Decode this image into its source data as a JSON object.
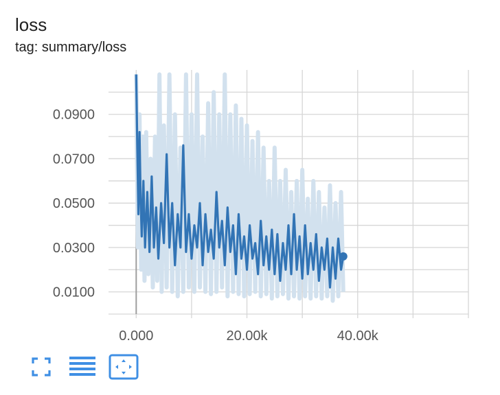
{
  "header": {
    "title": "loss",
    "subtitle": "tag: summary/loss"
  },
  "toolbar": {
    "buttons": [
      {
        "name": "expand-icon"
      },
      {
        "name": "log-scale-icon"
      },
      {
        "name": "fit-domain-icon"
      }
    ]
  },
  "colors": {
    "line": "#3274b5",
    "raw_line": "#d2e1ee",
    "grid": "#d6d6d6",
    "axis_text": "#555555",
    "zero_line": "#9e9e9e",
    "toolbar_icon": "#3f8fe4"
  },
  "chart_data": {
    "type": "line",
    "title": "loss",
    "subtitle": "tag: summary/loss",
    "xlabel": "",
    "ylabel": "",
    "xlim": [
      -5000,
      60000
    ],
    "ylim": [
      0.0,
      0.11
    ],
    "x_ticks": [
      0,
      20000,
      40000
    ],
    "x_tick_labels": [
      "0.000",
      "20.00k",
      "40.00k"
    ],
    "y_ticks": [
      0.01,
      0.03,
      0.05,
      0.07,
      0.09
    ],
    "y_tick_labels": [
      "0.0100",
      "0.0300",
      "0.0500",
      "0.0700",
      "0.0900"
    ],
    "grid": true,
    "legend": "none",
    "series": [
      {
        "role": "smoothed",
        "x": [
          0,
          200,
          400,
          600,
          800,
          1000,
          1300,
          1600,
          2000,
          2400,
          2800,
          3200,
          3600,
          4000,
          4500,
          5000,
          5500,
          6000,
          6500,
          7000,
          7500,
          8000,
          8500,
          9000,
          9500,
          10000,
          10500,
          11000,
          11500,
          12000,
          12500,
          13000,
          13500,
          14000,
          14500,
          15000,
          15500,
          16000,
          16500,
          17000,
          17500,
          18000,
          18500,
          19000,
          19500,
          20000,
          20500,
          21000,
          21500,
          22000,
          22500,
          23000,
          23500,
          24000,
          24500,
          25000,
          25500,
          26000,
          26500,
          27000,
          27500,
          28000,
          28500,
          29000,
          29500,
          30000,
          30500,
          31000,
          31500,
          32000,
          32500,
          33000,
          33500,
          34000,
          34500,
          35000,
          35500,
          36000,
          36500,
          37000,
          37400
        ],
        "values": [
          0.108,
          0.075,
          0.045,
          0.082,
          0.052,
          0.035,
          0.06,
          0.03,
          0.055,
          0.028,
          0.062,
          0.03,
          0.048,
          0.025,
          0.05,
          0.032,
          0.072,
          0.03,
          0.05,
          0.022,
          0.045,
          0.03,
          0.076,
          0.028,
          0.045,
          0.025,
          0.04,
          0.03,
          0.05,
          0.022,
          0.045,
          0.028,
          0.038,
          0.025,
          0.055,
          0.03,
          0.042,
          0.022,
          0.048,
          0.028,
          0.04,
          0.018,
          0.045,
          0.025,
          0.035,
          0.02,
          0.04,
          0.025,
          0.032,
          0.018,
          0.042,
          0.022,
          0.035,
          0.02,
          0.038,
          0.018,
          0.036,
          0.015,
          0.032,
          0.02,
          0.04,
          0.018,
          0.045,
          0.02,
          0.035,
          0.016,
          0.04,
          0.018,
          0.032,
          0.02,
          0.036,
          0.015,
          0.03,
          0.02,
          0.034,
          0.012,
          0.03,
          0.016,
          0.034,
          0.02,
          0.026
        ]
      },
      {
        "role": "raw",
        "x": [
          0,
          300,
          600,
          900,
          1200,
          1500,
          1800,
          2200,
          2600,
          3000,
          3400,
          3800,
          4200,
          4600,
          5000,
          5500,
          6000,
          6500,
          7000,
          7500,
          8000,
          8500,
          9000,
          9500,
          10000,
          10500,
          11000,
          11500,
          12000,
          12500,
          13000,
          13500,
          14000,
          14500,
          15000,
          15500,
          16000,
          16500,
          17000,
          17500,
          18000,
          18500,
          19000,
          19500,
          20000,
          20500,
          21000,
          21500,
          22000,
          22500,
          23000,
          23500,
          24000,
          24500,
          25000,
          25500,
          26000,
          26500,
          27000,
          27500,
          28000,
          28500,
          29000,
          29500,
          30000,
          30500,
          31000,
          31500,
          32000,
          32500,
          33000,
          33500,
          34000,
          34500,
          35000,
          35500,
          36000,
          36500,
          37000,
          37400
        ],
        "values": [
          0.108,
          0.03,
          0.09,
          0.02,
          0.08,
          0.015,
          0.082,
          0.018,
          0.07,
          0.012,
          0.08,
          0.015,
          0.108,
          0.01,
          0.085,
          0.012,
          0.108,
          0.01,
          0.09,
          0.008,
          0.075,
          0.01,
          0.108,
          0.012,
          0.09,
          0.01,
          0.108,
          0.012,
          0.08,
          0.01,
          0.095,
          0.009,
          0.1,
          0.01,
          0.09,
          0.012,
          0.108,
          0.008,
          0.09,
          0.01,
          0.094,
          0.009,
          0.088,
          0.008,
          0.085,
          0.009,
          0.078,
          0.01,
          0.082,
          0.008,
          0.075,
          0.009,
          0.06,
          0.007,
          0.075,
          0.008,
          0.06,
          0.009,
          0.065,
          0.007,
          0.055,
          0.008,
          0.06,
          0.007,
          0.065,
          0.008,
          0.052,
          0.007,
          0.06,
          0.008,
          0.055,
          0.007,
          0.048,
          0.008,
          0.058,
          0.006,
          0.05,
          0.008,
          0.055,
          0.01
        ]
      }
    ],
    "last_point": {
      "x": 37400,
      "y": 0.026
    }
  }
}
